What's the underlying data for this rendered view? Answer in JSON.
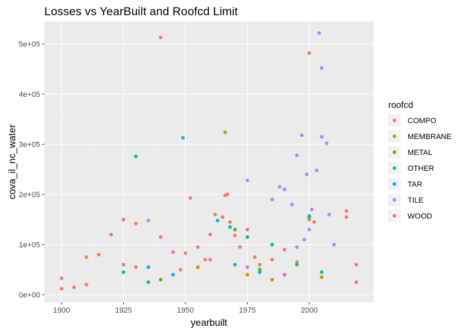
{
  "chart_data": {
    "type": "scatter",
    "title": "Losses vs YearBuilt and Roofcd Limit",
    "xlabel": "yearbuilt",
    "ylabel": "cova_il_nc_water",
    "xlim": [
      1893,
      2026
    ],
    "ylim": [
      -15000,
      545000
    ],
    "x_ticks": [
      1900,
      1925,
      1950,
      1975,
      2000
    ],
    "x_tick_labels": [
      "1900",
      "1925",
      "1950",
      "1975",
      "2000"
    ],
    "y_ticks": [
      0,
      100000,
      200000,
      300000,
      400000,
      500000
    ],
    "y_tick_labels": [
      "0e+00",
      "1e+05",
      "2e+05",
      "3e+05",
      "4e+05",
      "5e+05"
    ],
    "grid": true,
    "legend": {
      "title": "roofcd",
      "position": "right"
    },
    "series": [
      {
        "name": "COMPO",
        "color": "#F8766D",
        "points": [
          [
            1900,
            33000
          ],
          [
            1900,
            12000
          ],
          [
            1905,
            15000
          ],
          [
            1910,
            75000
          ],
          [
            1910,
            20000
          ],
          [
            1915,
            80000
          ],
          [
            1920,
            120000
          ],
          [
            1925,
            150000
          ],
          [
            1925,
            60000
          ],
          [
            1930,
            142000
          ],
          [
            1930,
            55000
          ],
          [
            1940,
            513000
          ],
          [
            1940,
            115000
          ],
          [
            1948,
            50000
          ],
          [
            1950,
            83000
          ],
          [
            1952,
            193000
          ],
          [
            1955,
            95000
          ],
          [
            1958,
            70000
          ],
          [
            1960,
            120000
          ],
          [
            1962,
            160000
          ],
          [
            1965,
            155000
          ],
          [
            1966,
            198000
          ],
          [
            1967,
            200000
          ],
          [
            1968,
            145000
          ],
          [
            1970,
            118000
          ],
          [
            1972,
            95000
          ],
          [
            1975,
            130000
          ],
          [
            1978,
            75000
          ],
          [
            1980,
            60000
          ],
          [
            1985,
            70000
          ],
          [
            1990,
            90000
          ],
          [
            1995,
            65000
          ],
          [
            2000,
            150000
          ],
          [
            2000,
            482000
          ],
          [
            2002,
            145000
          ],
          [
            2015,
            167000
          ],
          [
            2015,
            155000
          ],
          [
            2019,
            60000
          ],
          [
            2019,
            25000
          ]
        ]
      },
      {
        "name": "MEMBRANE",
        "color": "#C49A00",
        "points": [
          [
            1966,
            324000
          ],
          [
            1955,
            55000
          ],
          [
            1975,
            40000
          ],
          [
            1985,
            30000
          ],
          [
            2005,
            35000
          ]
        ]
      },
      {
        "name": "METAL",
        "color": "#53B400",
        "points": [
          [
            1940,
            30000
          ],
          [
            1970,
            130000
          ],
          [
            1980,
            50000
          ],
          [
            1990,
            40000
          ],
          [
            2000,
            155000
          ]
        ]
      },
      {
        "name": "OTHER",
        "color": "#00C094",
        "points": [
          [
            1930,
            276000
          ],
          [
            1925,
            45000
          ],
          [
            1935,
            25000
          ],
          [
            1968,
            135000
          ],
          [
            1975,
            115000
          ],
          [
            1985,
            100000
          ],
          [
            1995,
            60000
          ],
          [
            2000,
            157000
          ],
          [
            2005,
            45000
          ]
        ]
      },
      {
        "name": "TAR",
        "color": "#00B6EB",
        "points": [
          [
            1949,
            313000
          ],
          [
            1935,
            55000
          ],
          [
            1945,
            40000
          ],
          [
            1963,
            148000
          ],
          [
            1970,
            60000
          ],
          [
            1980,
            45000
          ]
        ]
      },
      {
        "name": "TILE",
        "color": "#A58AFF",
        "points": [
          [
            1935,
            148000
          ],
          [
            1975,
            228000
          ],
          [
            1985,
            190000
          ],
          [
            1988,
            215000
          ],
          [
            1990,
            210000
          ],
          [
            1993,
            180000
          ],
          [
            1995,
            278000
          ],
          [
            1997,
            318000
          ],
          [
            1999,
            240000
          ],
          [
            2001,
            170000
          ],
          [
            2003,
            248000
          ],
          [
            2004,
            522000
          ],
          [
            2005,
            452000
          ],
          [
            2005,
            315000
          ],
          [
            2007,
            302000
          ],
          [
            2008,
            160000
          ],
          [
            2010,
            100000
          ],
          [
            2000,
            130000
          ],
          [
            1998,
            110000
          ],
          [
            1995,
            95000
          ]
        ]
      },
      {
        "name": "WOOD",
        "color": "#FB61D7",
        "points": [
          [
            1945,
            85000
          ],
          [
            1960,
            70000
          ],
          [
            1975,
            55000
          ],
          [
            1990,
            40000
          ]
        ]
      }
    ]
  }
}
